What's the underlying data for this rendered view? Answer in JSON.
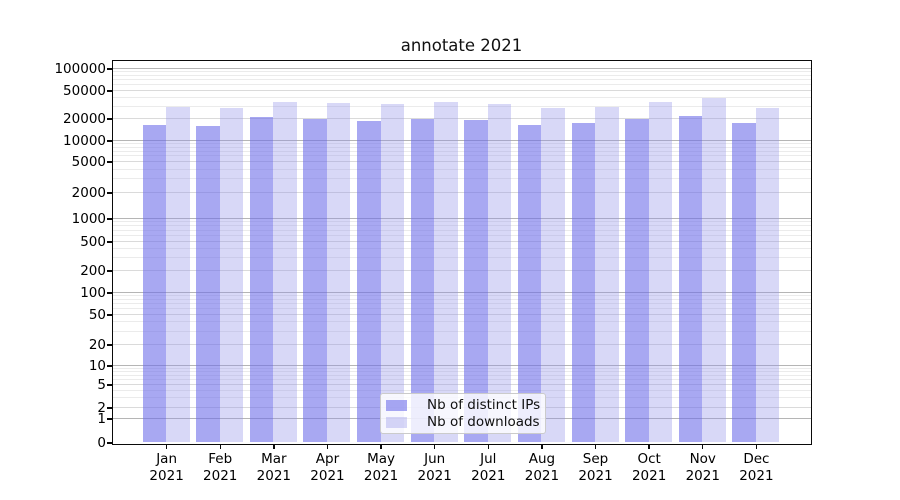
{
  "figure": {
    "title": "annotate 2021"
  },
  "chart_data": {
    "type": "bar",
    "title": "annotate 2021",
    "yscale": "symlog",
    "ylim": [
      0,
      130000
    ],
    "grid": "horizontal, major and minor gridlines",
    "legend_position": "lower center",
    "categories": [
      "Jan 2021",
      "Feb 2021",
      "Mar 2021",
      "Apr 2021",
      "May 2021",
      "Jun 2021",
      "Jul 2021",
      "Aug 2021",
      "Sep 2021",
      "Oct 2021",
      "Nov 2021",
      "Dec 2021"
    ],
    "x_tick_months": [
      "Jan",
      "Feb",
      "Mar",
      "Apr",
      "May",
      "Jun",
      "Jul",
      "Aug",
      "Sep",
      "Oct",
      "Nov",
      "Dec"
    ],
    "x_tick_year": "2021",
    "yticks": [
      {
        "value": 0,
        "label": "0"
      },
      {
        "value": 1,
        "label": "1"
      },
      {
        "value": 2,
        "label": "2"
      },
      {
        "value": 5,
        "label": "5"
      },
      {
        "value": 10,
        "label": "10"
      },
      {
        "value": 20,
        "label": "20"
      },
      {
        "value": 50,
        "label": "50"
      },
      {
        "value": 100,
        "label": "100"
      },
      {
        "value": 200,
        "label": "200"
      },
      {
        "value": 500,
        "label": "500"
      },
      {
        "value": 1000,
        "label": "1000"
      },
      {
        "value": 2000,
        "label": "2000"
      },
      {
        "value": 5000,
        "label": "5000"
      },
      {
        "value": 10000,
        "label": "10000"
      },
      {
        "value": 20000,
        "label": "20000"
      },
      {
        "value": 50000,
        "label": "50000"
      },
      {
        "value": 100000,
        "label": "100000"
      }
    ],
    "series": [
      {
        "name": "Nb of distinct IPs",
        "color": "rgba(110,110,233,0.6)",
        "values": [
          16500,
          16000,
          20700,
          19400,
          18200,
          19600,
          18800,
          16500,
          17500,
          19400,
          21500,
          17600
        ]
      },
      {
        "name": "Nb of downloads",
        "color": "rgba(144,144,232,0.35)",
        "values": [
          29500,
          28600,
          34700,
          33600,
          32500,
          33800,
          32500,
          28400,
          29300,
          34500,
          38500,
          28600
        ]
      }
    ]
  }
}
